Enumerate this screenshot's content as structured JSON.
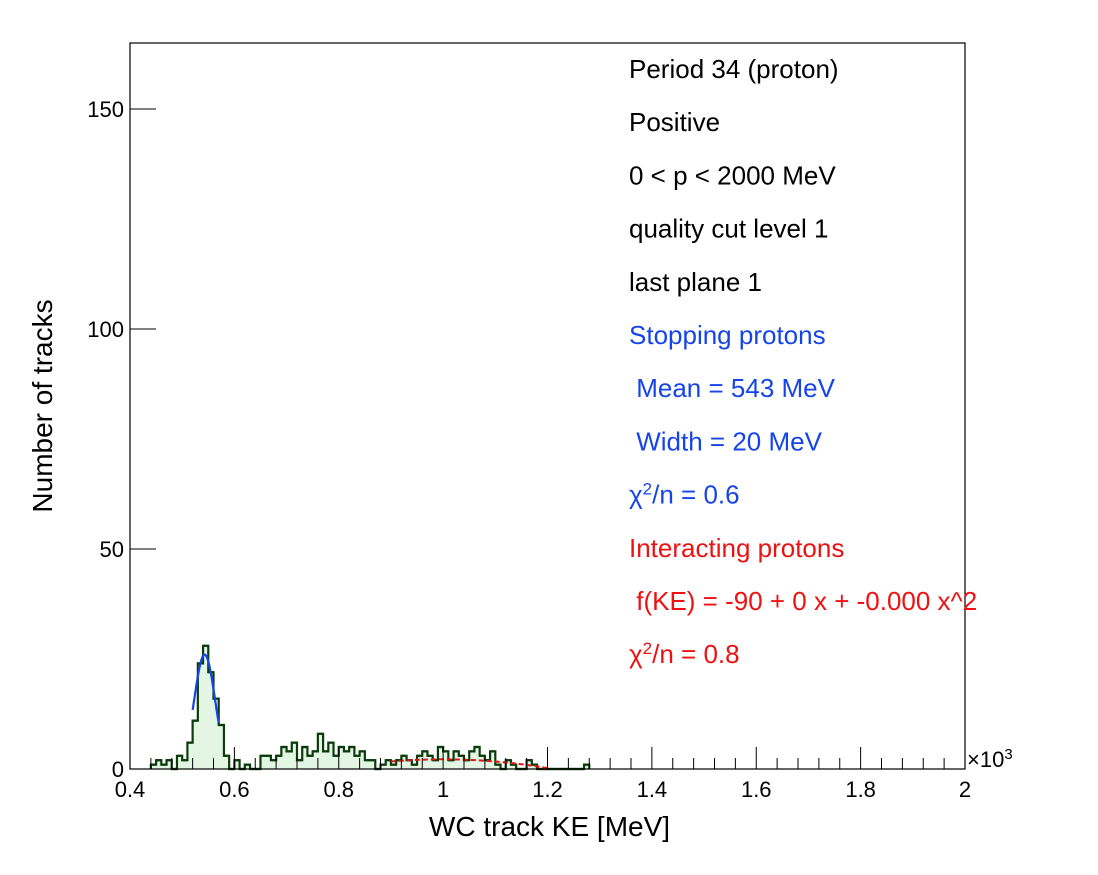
{
  "chart_data": {
    "type": "histogram",
    "xlabel": "WC track KE [MeV]",
    "ylabel": "Number of tracks",
    "x_multiplier": "×10",
    "x_multiplier_exp": "3",
    "xlim": [
      0.4,
      2.0
    ],
    "ylim": [
      0,
      165
    ],
    "x_ticks": [
      {
        "value": 0.4,
        "label": "0.4"
      },
      {
        "value": 0.6,
        "label": "0.6"
      },
      {
        "value": 0.8,
        "label": "0.8"
      },
      {
        "value": 1.0,
        "label": "1"
      },
      {
        "value": 1.2,
        "label": "1.2"
      },
      {
        "value": 1.4,
        "label": "1.4"
      },
      {
        "value": 1.6,
        "label": "1.6"
      },
      {
        "value": 1.8,
        "label": "1.8"
      },
      {
        "value": 2.0,
        "label": "2"
      }
    ],
    "y_ticks": [
      {
        "value": 0,
        "label": "0"
      },
      {
        "value": 50,
        "label": "50"
      },
      {
        "value": 100,
        "label": "100"
      },
      {
        "value": 150,
        "label": "150"
      }
    ],
    "colors": {
      "hist_line": "#0b3d0b",
      "hist_fill": "#e3f5e3",
      "fit_stopping": "#1545e8",
      "fit_interacting": "#ee1111",
      "text_black": "#000000",
      "text_blue": "#1545e8",
      "text_red": "#ee1111"
    },
    "bin_width": 0.01,
    "bins": [
      {
        "x": 0.44,
        "y": 1
      },
      {
        "x": 0.45,
        "y": 2
      },
      {
        "x": 0.46,
        "y": 1
      },
      {
        "x": 0.47,
        "y": 2
      },
      {
        "x": 0.48,
        "y": 0
      },
      {
        "x": 0.49,
        "y": 3
      },
      {
        "x": 0.5,
        "y": 2
      },
      {
        "x": 0.51,
        "y": 6
      },
      {
        "x": 0.52,
        "y": 11
      },
      {
        "x": 0.53,
        "y": 24
      },
      {
        "x": 0.54,
        "y": 28
      },
      {
        "x": 0.55,
        "y": 22
      },
      {
        "x": 0.56,
        "y": 16
      },
      {
        "x": 0.57,
        "y": 10
      },
      {
        "x": 0.58,
        "y": 3
      },
      {
        "x": 0.59,
        "y": 0
      },
      {
        "x": 0.6,
        "y": 2
      },
      {
        "x": 0.61,
        "y": 0
      },
      {
        "x": 0.62,
        "y": 1
      },
      {
        "x": 0.63,
        "y": 0
      },
      {
        "x": 0.64,
        "y": 0
      },
      {
        "x": 0.65,
        "y": 3
      },
      {
        "x": 0.66,
        "y": 3
      },
      {
        "x": 0.67,
        "y": 2
      },
      {
        "x": 0.68,
        "y": 3
      },
      {
        "x": 0.69,
        "y": 5
      },
      {
        "x": 0.7,
        "y": 4
      },
      {
        "x": 0.71,
        "y": 6
      },
      {
        "x": 0.72,
        "y": 2
      },
      {
        "x": 0.73,
        "y": 5
      },
      {
        "x": 0.74,
        "y": 3
      },
      {
        "x": 0.75,
        "y": 4
      },
      {
        "x": 0.76,
        "y": 8
      },
      {
        "x": 0.77,
        "y": 4
      },
      {
        "x": 0.78,
        "y": 6
      },
      {
        "x": 0.79,
        "y": 3
      },
      {
        "x": 0.8,
        "y": 5
      },
      {
        "x": 0.81,
        "y": 4
      },
      {
        "x": 0.82,
        "y": 5
      },
      {
        "x": 0.83,
        "y": 3
      },
      {
        "x": 0.84,
        "y": 4
      },
      {
        "x": 0.85,
        "y": 2
      },
      {
        "x": 0.86,
        "y": 2
      },
      {
        "x": 0.87,
        "y": 0
      },
      {
        "x": 0.88,
        "y": 1
      },
      {
        "x": 0.89,
        "y": 2
      },
      {
        "x": 0.9,
        "y": 1
      },
      {
        "x": 0.91,
        "y": 2
      },
      {
        "x": 0.92,
        "y": 3
      },
      {
        "x": 0.93,
        "y": 2
      },
      {
        "x": 0.94,
        "y": 1
      },
      {
        "x": 0.95,
        "y": 3
      },
      {
        "x": 0.96,
        "y": 4
      },
      {
        "x": 0.97,
        "y": 3
      },
      {
        "x": 0.98,
        "y": 2
      },
      {
        "x": 0.99,
        "y": 5
      },
      {
        "x": 1.0,
        "y": 4
      },
      {
        "x": 1.01,
        "y": 2
      },
      {
        "x": 1.02,
        "y": 4
      },
      {
        "x": 1.03,
        "y": 3
      },
      {
        "x": 1.04,
        "y": 2
      },
      {
        "x": 1.05,
        "y": 4
      },
      {
        "x": 1.06,
        "y": 5
      },
      {
        "x": 1.07,
        "y": 3
      },
      {
        "x": 1.08,
        "y": 2
      },
      {
        "x": 1.09,
        "y": 4
      },
      {
        "x": 1.1,
        "y": 1
      },
      {
        "x": 1.11,
        "y": 0
      },
      {
        "x": 1.12,
        "y": 2
      },
      {
        "x": 1.13,
        "y": 1
      },
      {
        "x": 1.14,
        "y": 0
      },
      {
        "x": 1.15,
        "y": 0
      },
      {
        "x": 1.16,
        "y": 2
      },
      {
        "x": 1.17,
        "y": 1
      },
      {
        "x": 1.18,
        "y": 0
      },
      {
        "x": 1.19,
        "y": 0
      },
      {
        "x": 1.2,
        "y": 0
      },
      {
        "x": 1.21,
        "y": 0
      },
      {
        "x": 1.22,
        "y": 0
      },
      {
        "x": 1.23,
        "y": 0
      },
      {
        "x": 1.24,
        "y": 0
      },
      {
        "x": 1.25,
        "y": 0
      },
      {
        "x": 1.26,
        "y": 0
      },
      {
        "x": 1.27,
        "y": 1
      }
    ],
    "fit_stopping": {
      "mean": 0.543,
      "sigma": 0.02,
      "amplitude": 26,
      "x_range": [
        0.52,
        0.57
      ]
    },
    "fit_interacting": {
      "peak_x": 1.0,
      "peak_y": 2.2,
      "x_range": [
        0.9,
        1.2
      ]
    }
  },
  "annotations": [
    {
      "text": "Period 34 (proton)",
      "color": "black"
    },
    {
      "text": "Positive",
      "color": "black"
    },
    {
      "text": "0 < p < 2000 MeV",
      "color": "black"
    },
    {
      "text": "quality cut level 1",
      "color": "black"
    },
    {
      "text": "last plane 1",
      "color": "black"
    },
    {
      "text": "Stopping protons",
      "color": "blue"
    },
    {
      "text": " Mean = 543 MeV",
      "color": "blue"
    },
    {
      "text": " Width = 20 MeV",
      "color": "blue"
    },
    {
      "text": "χ",
      "sup": "2",
      "after": "/n = 0.6",
      "color": "blue"
    },
    {
      "text": "Interacting protons",
      "color": "red"
    },
    {
      "text": " f(KE) = -90 + 0 x + -0.000 x^2",
      "color": "red"
    },
    {
      "text": "χ",
      "sup": "2",
      "after": "/n = 0.8",
      "color": "red"
    }
  ]
}
